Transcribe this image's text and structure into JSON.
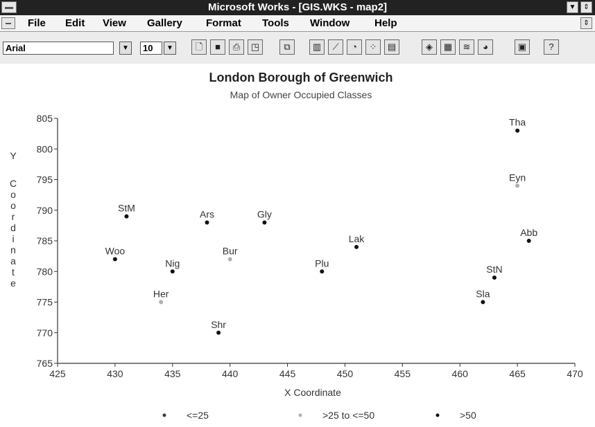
{
  "window": {
    "title": "Microsoft Works - [GIS.WKS - map2]"
  },
  "menu": [
    {
      "label": "File"
    },
    {
      "label": "Edit"
    },
    {
      "label": "View"
    },
    {
      "label": "Gallery"
    },
    {
      "label": "Format"
    },
    {
      "label": "Tools"
    },
    {
      "label": "Window"
    },
    {
      "label": "Help"
    }
  ],
  "toolbar": {
    "font_name": "Arial",
    "font_size": "10"
  },
  "icons": [
    "new-icon",
    "save-icon",
    "print-icon",
    "print-preview-icon",
    "copy-format-icon",
    "bar-chart-icon",
    "line-chart-icon",
    "pie-chart-icon",
    "scatter-chart-icon",
    "stacked-bar-icon",
    "combination-chart-icon",
    "3d-area-icon",
    "3d-bar-icon",
    "3d-line-icon",
    "3d-pie-icon",
    "spreadsheet-icon",
    "help-icon"
  ],
  "chart_data": {
    "type": "scatter",
    "title": "London Borough of Greenwich",
    "subtitle": "Map of Owner Occupied Classes",
    "xlabel": "X Coordinate",
    "ylabel": "Y Coordinate",
    "xlim": [
      425,
      470
    ],
    "ylim": [
      765,
      805
    ],
    "xticks": [
      425,
      430,
      435,
      440,
      445,
      450,
      455,
      460,
      465,
      470
    ],
    "yticks": [
      765,
      770,
      775,
      780,
      785,
      790,
      795,
      800,
      805
    ],
    "grid": false,
    "legend_position": "bottom",
    "series": [
      {
        "name": "<=25",
        "color": "#3a3a3a",
        "points": []
      },
      {
        "name": ">25 to <=50",
        "color": "#b0b0b0",
        "points": [
          {
            "label": "Eyn",
            "x": 465,
            "y": 794
          },
          {
            "label": "Bur",
            "x": 440,
            "y": 782
          },
          {
            "label": "Her",
            "x": 434,
            "y": 775
          }
        ]
      },
      {
        "name": ">50",
        "color": "#111111",
        "points": [
          {
            "label": "Tha",
            "x": 465,
            "y": 803
          },
          {
            "label": "StM",
            "x": 431,
            "y": 789
          },
          {
            "label": "Ars",
            "x": 438,
            "y": 788
          },
          {
            "label": "Gly",
            "x": 443,
            "y": 788
          },
          {
            "label": "Abb",
            "x": 466,
            "y": 785
          },
          {
            "label": "Lak",
            "x": 451,
            "y": 784
          },
          {
            "label": "Woo",
            "x": 430,
            "y": 782
          },
          {
            "label": "Nig",
            "x": 435,
            "y": 780
          },
          {
            "label": "Plu",
            "x": 448,
            "y": 780
          },
          {
            "label": "StN",
            "x": 463,
            "y": 779
          },
          {
            "label": "Sla",
            "x": 462,
            "y": 775
          },
          {
            "label": "Shr",
            "x": 439,
            "y": 770
          }
        ]
      }
    ]
  }
}
